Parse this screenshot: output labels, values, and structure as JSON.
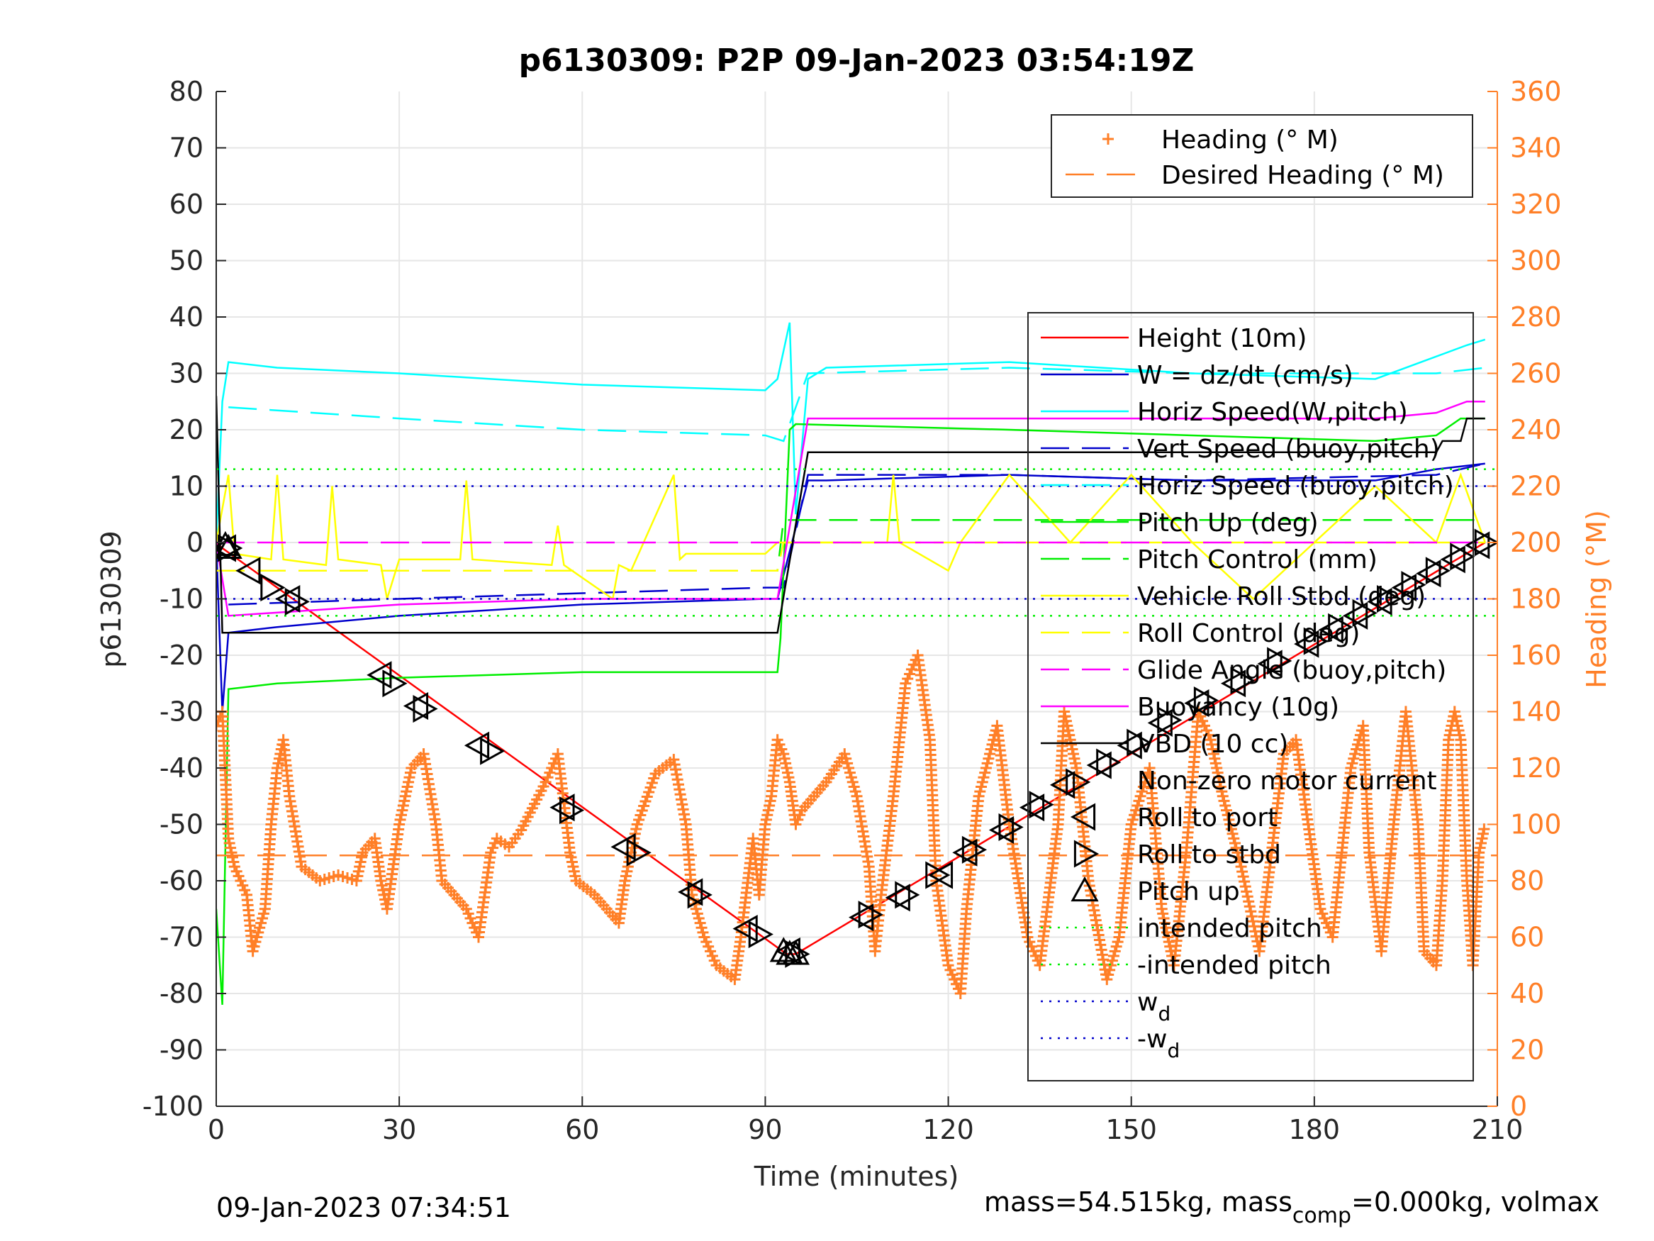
{
  "chart_data": {
    "type": "line",
    "title": "p6130309: P2P 09-Jan-2023 03:54:19Z",
    "xlabel": "Time (minutes)",
    "ylabel_left": "p6130309",
    "ylabel_right": "Heading (°M)",
    "xlim": [
      0,
      210
    ],
    "ylim_left": [
      -100,
      80
    ],
    "ylim_right": [
      0,
      360
    ],
    "x_ticks": [
      0,
      30,
      60,
      90,
      120,
      150,
      180,
      210
    ],
    "y_left_ticks": [
      -100,
      -90,
      -80,
      -70,
      -60,
      -50,
      -40,
      -30,
      -20,
      -10,
      0,
      10,
      20,
      30,
      40,
      50,
      60,
      70,
      80
    ],
    "y_right_ticks": [
      0,
      20,
      40,
      60,
      80,
      100,
      120,
      140,
      160,
      180,
      200,
      220,
      240,
      260,
      280,
      300,
      320,
      340,
      360
    ],
    "grid": true,
    "footer_left": "09-Jan-2023 07:34:51",
    "footer_right_pre": "mass=54.515kg, mass",
    "footer_right_sub": "comp",
    "footer_right_post": "=0.000kg, volmax",
    "colors": {
      "heading": "#ff7f27",
      "height": "#ff0000",
      "w": "#0000cc",
      "horiz_speed": "#00ffff",
      "pitch": "#00ee00",
      "roll": "#ffff00",
      "glide": "#ff00ff",
      "vbd": "#000000",
      "axis": "#262626",
      "grid": "#e6e6e6"
    },
    "legend_right": [
      {
        "label": "Heading (° M)",
        "style": "plus"
      },
      {
        "label": "Desired Heading (° M)",
        "style": "dash"
      }
    ],
    "legend_left": [
      {
        "label": "Height (10m)",
        "style": "solid",
        "color": "#ff0000"
      },
      {
        "label": "W = dz/dt (cm/s)",
        "style": "solid",
        "color": "#0000cc"
      },
      {
        "label": "Horiz Speed(W,pitch)",
        "style": "solid",
        "color": "#00ffff"
      },
      {
        "label": "Vert Speed (buoy,pitch)",
        "style": "dash",
        "color": "#0000cc"
      },
      {
        "label": "Horiz Speed (buoy,pitch)",
        "style": "dash",
        "color": "#00ffff"
      },
      {
        "label": "Pitch Up (deg)",
        "style": "solid",
        "color": "#00ee00"
      },
      {
        "label": "Pitch Control (mm)",
        "style": "dash",
        "color": "#00ee00"
      },
      {
        "label": "Vehicle Roll Stbd (deg)",
        "style": "solid",
        "color": "#ffff00"
      },
      {
        "label": "Roll Control (deg)",
        "style": "dash",
        "color": "#ffff00"
      },
      {
        "label": "Glide Angle (buoy,pitch)",
        "style": "dash",
        "color": "#ff00ff"
      },
      {
        "label": "Buoyancy (10g)",
        "style": "solid",
        "color": "#ff00ff"
      },
      {
        "label": "VBD (10 cc)",
        "style": "solid",
        "color": "#000000"
      },
      {
        "label": "Non-zero motor current",
        "style": "none",
        "color": "#000000"
      },
      {
        "label": "Roll to port",
        "style": "tri-left",
        "color": "#000000"
      },
      {
        "label": "Roll to stbd",
        "style": "tri-right",
        "color": "#000000"
      },
      {
        "label": "Pitch up",
        "style": "tri-up",
        "color": "#000000"
      },
      {
        "label": "intended pitch",
        "style": "dot",
        "color": "#00ee00"
      },
      {
        "label": "-intended pitch",
        "style": "dot",
        "color": "#00ee00"
      },
      {
        "label": "w",
        "sub": "d",
        "style": "dot",
        "color": "#0000cc"
      },
      {
        "label": "-w",
        "sub": "d",
        "style": "dot",
        "color": "#0000cc"
      }
    ],
    "series": [
      {
        "name": "Height (10m)",
        "axis": "left",
        "x": [
          0,
          1,
          93.5,
          95,
          208
        ],
        "y": [
          0,
          -1,
          -73,
          -73,
          0
        ]
      },
      {
        "name": "W = dz/dt (cm/s)",
        "axis": "left",
        "x": [
          0,
          1,
          2,
          10,
          30,
          60,
          90,
          92,
          97,
          100,
          130,
          160,
          190,
          200,
          208
        ],
        "y": [
          0,
          -30,
          -16,
          -15,
          -13,
          -11,
          -10,
          -10,
          11,
          11,
          12,
          11,
          11,
          13,
          14
        ]
      },
      {
        "name": "Horiz Speed(W,pitch)",
        "axis": "left",
        "x": [
          0,
          1,
          2,
          10,
          30,
          60,
          90,
          92,
          94,
          95,
          97,
          100,
          130,
          160,
          190,
          205,
          208
        ],
        "y": [
          0,
          25,
          32,
          31,
          30,
          28,
          27,
          29,
          39,
          5,
          29,
          31,
          32,
          30,
          29,
          35,
          36
        ]
      },
      {
        "name": "Vert Speed (buoy,pitch)",
        "axis": "left",
        "x": [
          2,
          30,
          60,
          90,
          93,
          97,
          130,
          160,
          200,
          208
        ],
        "y": [
          -11,
          -10,
          -9,
          -8,
          -8,
          12,
          12,
          11,
          12,
          14
        ]
      },
      {
        "name": "Horiz Speed (buoy,pitch)",
        "axis": "left",
        "x": [
          2,
          30,
          60,
          90,
          93,
          97,
          130,
          160,
          200,
          208
        ],
        "y": [
          24,
          22,
          20,
          19,
          18,
          30,
          31,
          30,
          30,
          31
        ]
      },
      {
        "name": "Pitch Up (deg)",
        "axis": "left",
        "x": [
          0,
          1,
          2,
          10,
          30,
          60,
          92,
          92.5,
          94,
          95,
          130,
          160,
          190,
          200,
          204,
          208
        ],
        "y": [
          -65,
          -82,
          -26,
          -25,
          -24,
          -23,
          -23,
          -17,
          20,
          21,
          20,
          19,
          18,
          19,
          22,
          22
        ]
      },
      {
        "name": "Pitch Control (mm)",
        "axis": "left",
        "x": [
          0,
          92,
          93,
          208
        ],
        "y": [
          -5,
          -5,
          4,
          4
        ]
      },
      {
        "name": "Vehicle Roll Stbd (deg)",
        "axis": "left",
        "x": [
          0,
          2,
          3,
          9,
          10,
          11,
          18,
          19,
          20,
          27,
          28,
          30,
          40,
          41,
          42,
          55,
          56,
          57,
          65,
          66,
          68,
          75,
          76,
          77,
          90,
          92,
          93,
          100,
          110,
          111,
          112,
          120,
          122,
          130,
          140,
          150,
          160,
          170,
          180,
          190,
          200,
          204,
          208
        ],
        "y": [
          0,
          12,
          -2,
          -3,
          12,
          -3,
          -4,
          10,
          -3,
          -4,
          -10,
          -3,
          -3,
          11,
          -3,
          -4,
          3,
          -4,
          -10,
          -4,
          -5,
          12,
          -3,
          -2,
          -2,
          0,
          0,
          0,
          0,
          12,
          0,
          -5,
          0,
          12,
          0,
          12,
          0,
          -10,
          0,
          10,
          0,
          12,
          0
        ]
      },
      {
        "name": "Roll Control (deg)",
        "axis": "left",
        "x": [
          0,
          92,
          93,
          208
        ],
        "y": [
          -5,
          -5,
          0,
          0
        ]
      },
      {
        "name": "Glide Angle (buoy,pitch)",
        "axis": "left",
        "x": [
          0,
          208
        ],
        "y": [
          0,
          0
        ]
      },
      {
        "name": "Buoyancy (10g)",
        "axis": "left",
        "x": [
          0,
          2,
          30,
          60,
          92,
          97,
          130,
          160,
          190,
          200,
          205,
          208
        ],
        "y": [
          0,
          -13,
          -11,
          -10,
          -10,
          22,
          22,
          22,
          22,
          23,
          25,
          25
        ]
      },
      {
        "name": "VBD (10 cc)",
        "axis": "left",
        "x": [
          0,
          1,
          2,
          92,
          97,
          200,
          201,
          204,
          205,
          208
        ],
        "y": [
          26,
          -16,
          -16,
          -16,
          16,
          16,
          18,
          18,
          22,
          22
        ]
      },
      {
        "name": "intended pitch",
        "axis": "left",
        "x": [
          0,
          210
        ],
        "y": [
          13,
          13
        ]
      },
      {
        "name": "-intended pitch",
        "axis": "left",
        "x": [
          0,
          210
        ],
        "y": [
          -13,
          -13
        ]
      },
      {
        "name": "w_d",
        "axis": "left",
        "x": [
          0,
          210
        ],
        "y": [
          10,
          10
        ]
      },
      {
        "name": "-w_d",
        "axis": "left",
        "x": [
          0,
          210
        ],
        "y": [
          -10,
          -10
        ]
      },
      {
        "name": "Desired Heading (° M)",
        "axis": "right",
        "x": [
          0,
          210
        ],
        "y": [
          89,
          89
        ]
      }
    ],
    "heading": {
      "name": "Heading (° M)",
      "axis": "right",
      "x": [
        0,
        1,
        2,
        3,
        5,
        6,
        8,
        9,
        10,
        11,
        12,
        14,
        17,
        20,
        23,
        24,
        26,
        27,
        28,
        30,
        32,
        34,
        36,
        37,
        39,
        41,
        43,
        45,
        46,
        48,
        50,
        54,
        56,
        58,
        59,
        62,
        64,
        66,
        67,
        69,
        72,
        75,
        77,
        78,
        80,
        82,
        85,
        86,
        88,
        89,
        90,
        91,
        92,
        93,
        94,
        95,
        96,
        98,
        100,
        103,
        105,
        107,
        108,
        109,
        111,
        113,
        115,
        117,
        118,
        120,
        122,
        123,
        125,
        128,
        130,
        133,
        135,
        138,
        139,
        141,
        143,
        146,
        148,
        150,
        153,
        155,
        157,
        159,
        161,
        163,
        165,
        168,
        171,
        173,
        175,
        177,
        179,
        181,
        183,
        186,
        188,
        189,
        191,
        193,
        195,
        197,
        198,
        200,
        201,
        202,
        203,
        204,
        205,
        206,
        207,
        208
      ],
      "y": [
        135,
        140,
        95,
        85,
        75,
        55,
        70,
        100,
        120,
        130,
        110,
        85,
        80,
        82,
        80,
        90,
        95,
        80,
        70,
        100,
        120,
        125,
        100,
        80,
        75,
        70,
        60,
        90,
        95,
        92,
        98,
        115,
        125,
        90,
        80,
        75,
        70,
        65,
        80,
        100,
        118,
        123,
        100,
        75,
        60,
        50,
        45,
        60,
        95,
        75,
        100,
        110,
        130,
        125,
        115,
        100,
        105,
        110,
        115,
        125,
        110,
        85,
        55,
        75,
        110,
        150,
        160,
        130,
        80,
        50,
        40,
        70,
        110,
        135,
        100,
        60,
        50,
        100,
        140,
        120,
        80,
        45,
        60,
        100,
        120,
        70,
        50,
        90,
        140,
        130,
        110,
        85,
        55,
        90,
        125,
        130,
        100,
        70,
        60,
        120,
        135,
        90,
        55,
        100,
        140,
        100,
        55,
        50,
        80,
        130,
        140,
        130,
        80,
        50,
        90,
        100
      ]
    },
    "markers": {
      "roll_to_port": {
        "x": [
          1.5,
          5.5,
          12,
          27,
          33,
          43,
          57,
          67,
          78,
          87,
          94,
          106,
          112,
          119,
          123,
          129,
          134,
          139,
          145,
          150,
          155,
          161,
          167,
          173,
          179,
          183,
          187,
          191,
          195,
          199,
          203,
          207
        ],
        "y": [
          -1,
          -5,
          -10,
          -23.5,
          -29,
          -36,
          -47,
          -54,
          -62,
          -68.5,
          -72.5,
          -66.5,
          -63,
          -59,
          -55,
          -51,
          -47,
          -43,
          -39.5,
          -36,
          -32,
          -28.5,
          -25,
          -21.5,
          -18,
          -15.5,
          -13,
          -10.5,
          -8,
          -5.5,
          -3,
          -0.5
        ]
      },
      "roll_to_stbd": {
        "x": [
          2,
          9,
          13,
          29,
          34,
          45,
          58,
          69,
          79,
          89,
          95,
          107,
          113,
          118,
          124,
          130,
          135,
          141,
          146,
          151,
          156,
          162,
          168,
          174,
          180,
          184,
          188,
          192,
          196,
          200,
          204,
          208
        ],
        "y": [
          -1,
          -8,
          -10.5,
          -25,
          -29.5,
          -37,
          -47.5,
          -55,
          -62.5,
          -69.5,
          -73,
          -66,
          -62.5,
          -59,
          -54.5,
          -50.5,
          -46.5,
          -42.5,
          -39,
          -35.5,
          -31.5,
          -28,
          -24.5,
          -21,
          -17.5,
          -15,
          -12.5,
          -10,
          -7.5,
          -5,
          -2.5,
          0
        ]
      },
      "pitch_up": {
        "x": [
          1.5,
          2,
          93,
          94,
          95
        ],
        "y": [
          -0.5,
          -1,
          -72.5,
          -73,
          -73
        ]
      }
    }
  }
}
